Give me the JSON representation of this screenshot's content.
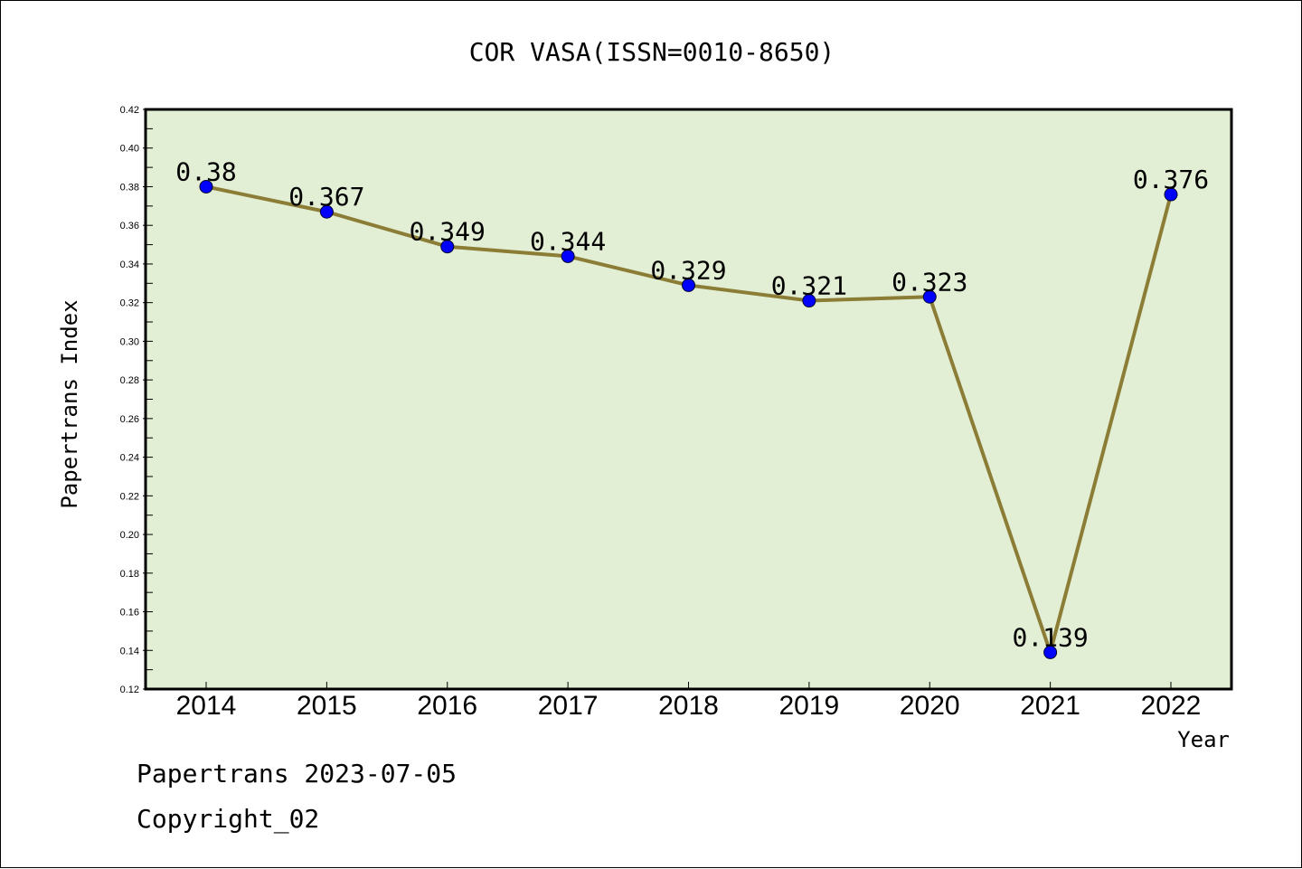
{
  "chart_data": {
    "type": "line",
    "title": "COR VASA(ISSN=0010-8650)",
    "xlabel": "Year",
    "ylabel": "Papertrans Index",
    "categories": [
      "2014",
      "2015",
      "2016",
      "2017",
      "2018",
      "2019",
      "2020",
      "2021",
      "2022"
    ],
    "series": [
      {
        "values": [
          0.38,
          0.367,
          0.349,
          0.344,
          0.329,
          0.321,
          0.323,
          0.139,
          0.376
        ],
        "data_labels": [
          "0.38",
          "0.367",
          "0.349",
          "0.344",
          "0.329",
          "0.321",
          "0.323",
          "0.139",
          "0.376"
        ]
      }
    ],
    "ylim": [
      0.12,
      0.42
    ],
    "yticks": [
      "0.12",
      "0.14",
      "0.16",
      "0.18",
      "0.20",
      "0.22",
      "0.24",
      "0.26",
      "0.28",
      "0.30",
      "0.32",
      "0.34",
      "0.36",
      "0.38",
      "0.40",
      "0.42"
    ],
    "grid": false,
    "legend": "none",
    "colors": {
      "plot_background": "#e2efd5",
      "line": "#8c7d36",
      "marker": "#0000ff",
      "axes": "#000000"
    }
  },
  "footer": {
    "line1": "Papertrans 2023-07-05",
    "line2": "Copyright_02"
  }
}
